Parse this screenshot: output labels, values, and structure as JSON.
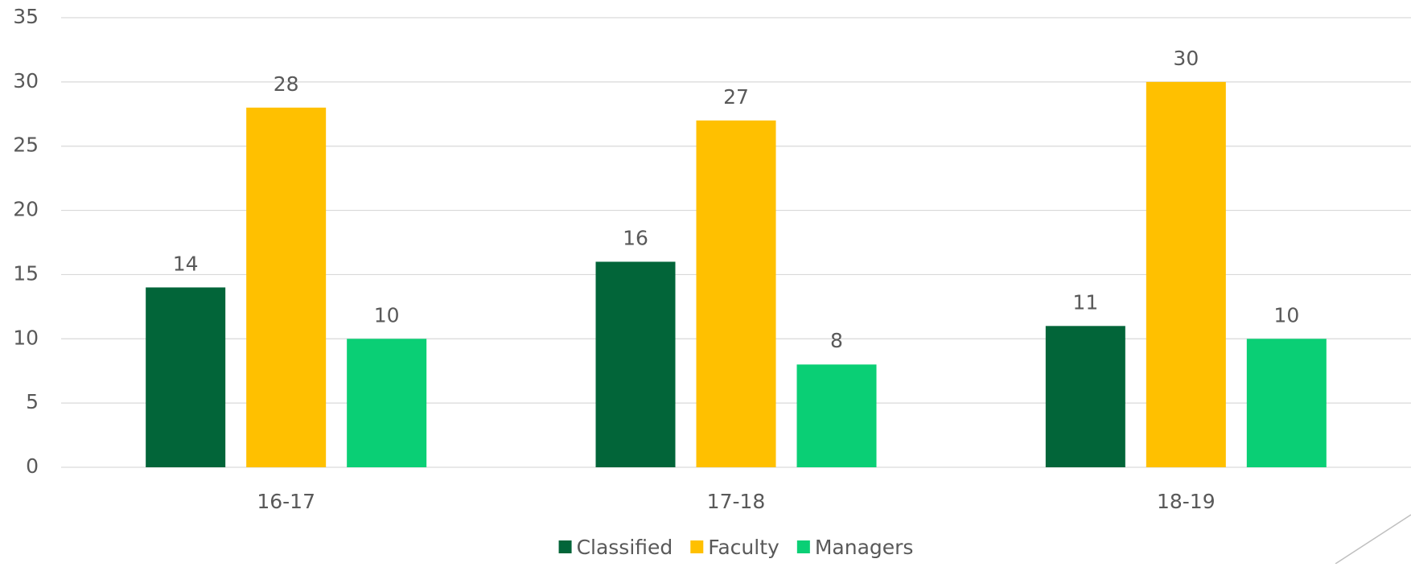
{
  "chart_data": {
    "type": "bar",
    "categories": [
      "16-17",
      "17-18",
      "18-19"
    ],
    "series": [
      {
        "name": "Classified",
        "color": "#026539",
        "values": [
          14,
          16,
          11
        ]
      },
      {
        "name": "Faculty",
        "color": "#FFC000",
        "values": [
          28,
          27,
          30
        ]
      },
      {
        "name": "Managers",
        "color": "#0ACF75",
        "values": [
          10,
          8,
          10
        ]
      }
    ],
    "ylim": [
      0,
      35
    ],
    "yticks": [
      0,
      5,
      10,
      15,
      20,
      25,
      30,
      35
    ],
    "grid": true,
    "legend": "bottom"
  }
}
